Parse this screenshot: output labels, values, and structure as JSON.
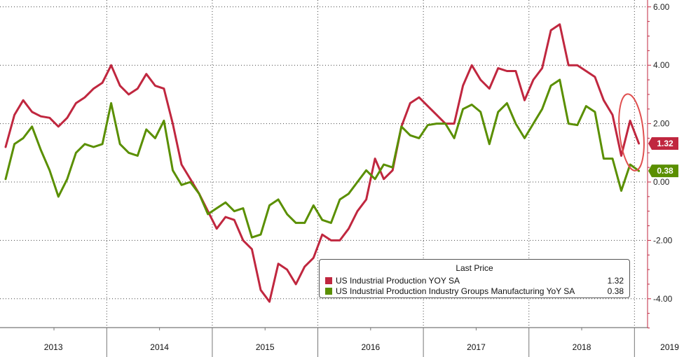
{
  "chart_data": {
    "type": "line",
    "y_side": "right",
    "ylim": [
      -5,
      6
    ],
    "y_ticks": [
      "6.00",
      "4.00",
      "2.00",
      "0.00",
      "-2.00",
      "-4.00"
    ],
    "y_tick_values": [
      6,
      4,
      2,
      0,
      -2,
      -4
    ],
    "x_start": "2013-01",
    "x_tick_labels": [
      "2013",
      "2014",
      "2015",
      "2016",
      "2017",
      "2018",
      "2019"
    ],
    "grid": true,
    "legend": {
      "title": "Last Price",
      "placement": "bottom-right"
    },
    "series": [
      {
        "name": "US Industrial Production YOY SA",
        "last_value": "1.32",
        "color": "#c0273f",
        "values": [
          1.2,
          2.3,
          2.8,
          2.4,
          2.25,
          2.2,
          1.9,
          2.2,
          2.7,
          2.9,
          3.2,
          3.4,
          4.0,
          3.3,
          3.0,
          3.2,
          3.7,
          3.3,
          3.2,
          2.0,
          0.6,
          0.1,
          -0.4,
          -1.0,
          -1.6,
          -1.2,
          -1.3,
          -2.0,
          -2.3,
          -3.7,
          -4.1,
          -2.8,
          -3.0,
          -3.5,
          -2.9,
          -2.6,
          -1.8,
          -2.0,
          -2.0,
          -1.6,
          -1.0,
          -0.6,
          0.8,
          0.1,
          0.4,
          1.9,
          2.7,
          2.9,
          2.6,
          2.3,
          2.0,
          2.0,
          3.3,
          4.0,
          3.5,
          3.2,
          3.9,
          3.8,
          3.8,
          2.8,
          3.5,
          3.9,
          5.2,
          5.4,
          4.0,
          4.0,
          3.8,
          3.6,
          2.8,
          2.3,
          0.9,
          2.1,
          1.32
        ]
      },
      {
        "name": "US Industrial Production Industry Groups Manufacturing YoY SA",
        "last_value": "0.38",
        "color": "#5a8f00",
        "values": [
          0.1,
          1.3,
          1.5,
          1.9,
          1.1,
          0.4,
          -0.5,
          0.1,
          1.0,
          1.3,
          1.2,
          1.3,
          2.7,
          1.3,
          1.0,
          0.9,
          1.8,
          1.5,
          2.1,
          0.4,
          -0.1,
          0.0,
          -0.4,
          -1.1,
          -0.9,
          -0.7,
          -1.0,
          -0.9,
          -1.9,
          -1.8,
          -0.8,
          -0.6,
          -1.1,
          -1.4,
          -1.4,
          -0.8,
          -1.3,
          -1.4,
          -0.6,
          -0.4,
          0.0,
          0.4,
          0.1,
          0.6,
          0.5,
          1.9,
          1.6,
          1.5,
          1.95,
          2.0,
          2.0,
          1.5,
          2.5,
          2.65,
          2.4,
          1.3,
          2.4,
          2.7,
          2.0,
          1.5,
          2.0,
          2.5,
          3.3,
          3.5,
          2.0,
          1.95,
          2.6,
          2.4,
          0.8,
          0.8,
          -0.3,
          0.6,
          0.38
        ]
      }
    ]
  }
}
